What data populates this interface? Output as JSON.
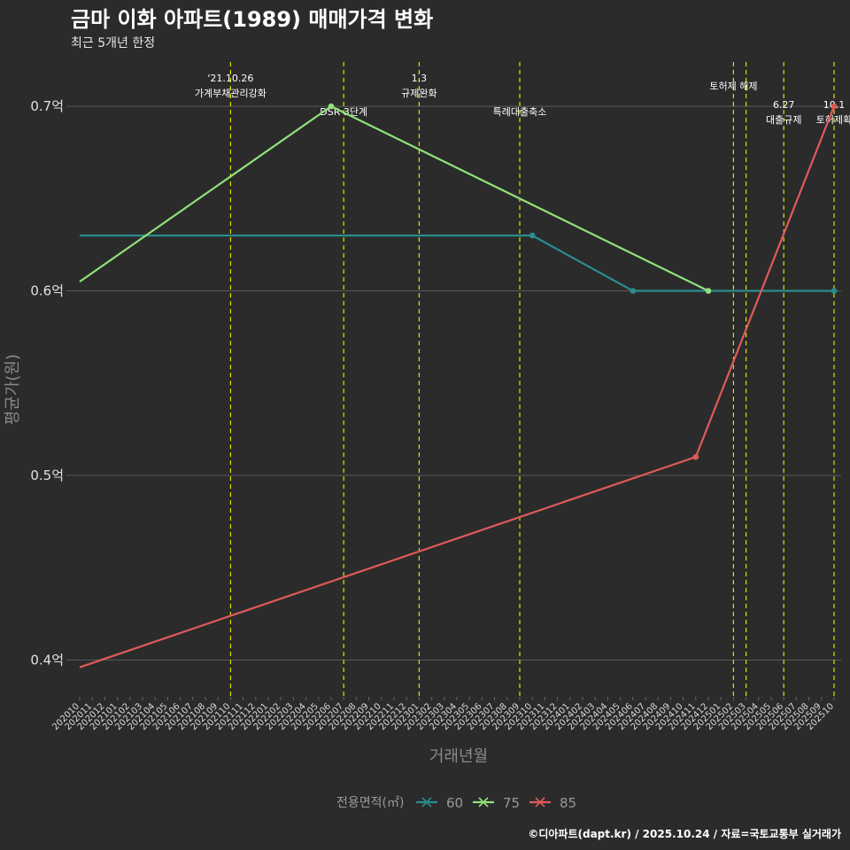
{
  "chart_data": {
    "type": "line",
    "title": "금마 이화 아파트(1989) 매매가격 변화",
    "subtitle": "최근 5개년 한정",
    "xlabel": "거래년월",
    "ylabel": "평균가(원)",
    "caption": "©디아파트(dapt.kr) / 2025.10.24 / 자료=국토교통부 실거래가",
    "ylim": [
      0.38,
      0.725
    ],
    "y_ticks": [
      {
        "value": 0.4,
        "label": "0.4억"
      },
      {
        "value": 0.5,
        "label": "0.5억"
      },
      {
        "value": 0.6,
        "label": "0.6억"
      },
      {
        "value": 0.7,
        "label": "0.7억"
      }
    ],
    "categories": [
      "202010",
      "202011",
      "202012",
      "202101",
      "202102",
      "202103",
      "202104",
      "202105",
      "202106",
      "202107",
      "202108",
      "202109",
      "202110",
      "202111",
      "202112",
      "202201",
      "202202",
      "202203",
      "202204",
      "202205",
      "202206",
      "202207",
      "202208",
      "202209",
      "202210",
      "202211",
      "202212",
      "202301",
      "202302",
      "202303",
      "202304",
      "202305",
      "202306",
      "202307",
      "202308",
      "202309",
      "202310",
      "202311",
      "202312",
      "202401",
      "202402",
      "202403",
      "202404",
      "202405",
      "202406",
      "202407",
      "202408",
      "202409",
      "202410",
      "202411",
      "202412",
      "202501",
      "202502",
      "202503",
      "202504",
      "202505",
      "202506",
      "202507",
      "202508",
      "202509",
      "202510"
    ],
    "legend_title": "전용면적(㎡)",
    "series": [
      {
        "name": "60",
        "color": "#2a8c8c",
        "points": [
          {
            "x": "202010",
            "y": 0.63,
            "marker": false
          },
          {
            "x": "202310",
            "y": 0.63,
            "marker": true
          },
          {
            "x": "202406",
            "y": 0.6,
            "marker": true
          },
          {
            "x": "202412",
            "y": 0.6,
            "marker": true
          },
          {
            "x": "202510",
            "y": 0.6,
            "marker": true
          }
        ]
      },
      {
        "name": "75",
        "color": "#90e07a",
        "points": [
          {
            "x": "202010",
            "y": 0.605,
            "marker": false
          },
          {
            "x": "202206",
            "y": 0.7,
            "marker": true
          },
          {
            "x": "202412",
            "y": 0.6,
            "marker": true
          }
        ]
      },
      {
        "name": "85",
        "color": "#e05a5a",
        "points": [
          {
            "x": "202010",
            "y": 0.396,
            "marker": false
          },
          {
            "x": "202411",
            "y": 0.51,
            "marker": true
          },
          {
            "x": "202510",
            "y": 0.7,
            "marker": true
          }
        ]
      }
    ],
    "events": [
      {
        "x": "202110",
        "lines": [
          "'21.10.26",
          "가계부채관리강화"
        ],
        "row": 0
      },
      {
        "x": "202207",
        "lines": [
          "DSR 3단계"
        ],
        "row": 2
      },
      {
        "x": "202301",
        "lines": [
          "1.3",
          "규제완화"
        ],
        "row": 0
      },
      {
        "x": "202309",
        "lines": [
          "특례대출축소"
        ],
        "row": 2
      },
      {
        "x": "202502",
        "lines": [
          "토허제 해제"
        ],
        "row": 1
      },
      {
        "x": "202503",
        "lines": [],
        "row": 1
      },
      {
        "x": "202506",
        "lines": [
          "6.27",
          "대출규제"
        ],
        "row": 3
      },
      {
        "x": "202510",
        "lines": [
          "10.1",
          "토허제확"
        ],
        "row": 3
      }
    ],
    "colors": {
      "background": "#2b2b2b",
      "grid": "#5a5a5a",
      "event_line": "#e0e000"
    }
  }
}
